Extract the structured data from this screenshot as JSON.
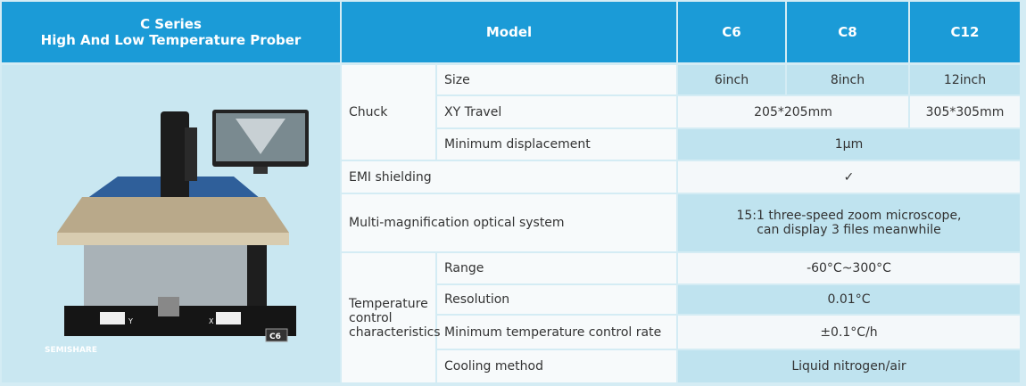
{
  "image": {
    "brand": "SEMISHARE",
    "model_plate": "C6",
    "axis_left": "Y",
    "axis_right": "X"
  },
  "table": {
    "header": {
      "product": [
        "C Series",
        "High And Low Temperature  Prober"
      ],
      "model": "Model",
      "variants": [
        "C6",
        "C8",
        "C12"
      ]
    },
    "groups": [
      {
        "name": "Chuck",
        "rows": [
          {
            "label": "Size",
            "values": [
              "6inch",
              "8inch",
              "12inch"
            ]
          },
          {
            "label": "XY Travel",
            "values": [
              "205*205mm",
              "305*305mm"
            ]
          },
          {
            "label": "Minimum displacement",
            "values": [
              "1μm"
            ]
          }
        ]
      },
      {
        "name": "EMI shielding",
        "values": [
          "✓"
        ]
      },
      {
        "name": "Multi-magnification optical system",
        "values": [
          "15:1 three-speed zoom microscope,\ncan display 3 files meanwhile"
        ]
      },
      {
        "name": "Temperature control characteristics",
        "rows": [
          {
            "label": "Range",
            "values": [
              "-60°C~300°C"
            ]
          },
          {
            "label": "Resolution",
            "values": [
              "0.01°C"
            ]
          },
          {
            "label": "Minimum temperature  control rate",
            "values": [
              "±0.1°C/h"
            ]
          },
          {
            "label": "Cooling method",
            "values": [
              "Liquid nitrogen/air"
            ]
          }
        ]
      }
    ]
  }
}
